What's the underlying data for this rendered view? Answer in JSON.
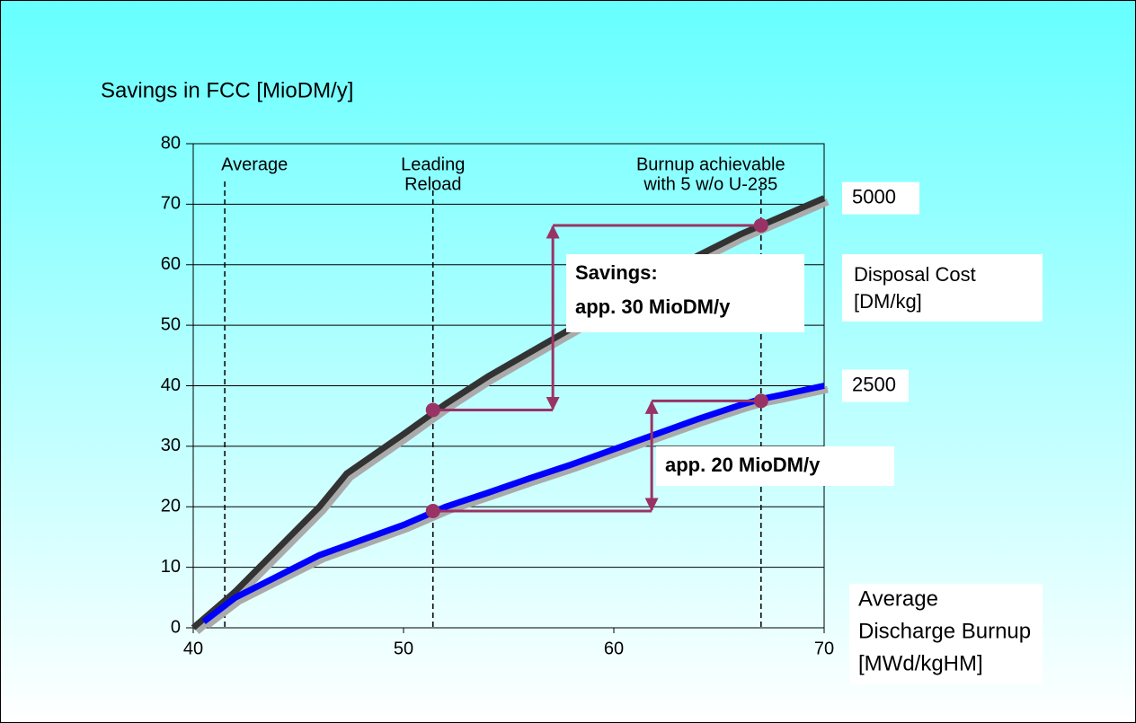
{
  "chart_data": {
    "type": "line",
    "title": "Savings in FCC [MioDM/y]",
    "x_label": [
      "Average",
      "Discharge Burnup",
      "[MWd/kgHM]"
    ],
    "legend_title": [
      "Disposal Cost",
      "[DM/kg]"
    ],
    "xlim": [
      40,
      70
    ],
    "ylim": [
      0,
      80
    ],
    "xticks": [
      40,
      50,
      60,
      70
    ],
    "yticks": [
      0,
      10,
      20,
      30,
      40,
      50,
      60,
      70,
      80
    ],
    "grid": true,
    "series": [
      {
        "name": "5000",
        "color": "#333333",
        "x": [
          40,
          42,
          44,
          46,
          47.3,
          50,
          52,
          54,
          56,
          58,
          60,
          62,
          64,
          66,
          67,
          68,
          70
        ],
        "values": [
          0,
          6,
          13,
          20,
          25.5,
          32,
          37,
          41.5,
          45.5,
          49.5,
          53.5,
          57.5,
          61.5,
          65,
          66.5,
          68,
          71
        ]
      },
      {
        "name": "2500",
        "color": "#0000ff",
        "x": [
          40.5,
          42,
          44,
          46,
          48,
          50,
          52,
          54,
          56,
          58,
          60,
          62,
          64,
          66,
          67,
          68,
          70
        ],
        "values": [
          1,
          5,
          8.5,
          12,
          14.5,
          17,
          20,
          22.3,
          24.7,
          27,
          29.5,
          32,
          34.5,
          36.8,
          37.8,
          38.5,
          40
        ]
      }
    ],
    "reference_lines": [
      {
        "x": 41.5,
        "label": [
          "Average"
        ]
      },
      {
        "x": 51.4,
        "label": [
          "Leading",
          "Reload"
        ]
      },
      {
        "x": 67,
        "label": [
          "Burnup achievable",
          "with 5 w/o U-235"
        ]
      }
    ],
    "annotations": [
      {
        "label": [
          "Savings:",
          "app. 30 MioDM/y"
        ],
        "from": [
          51.4,
          36
        ],
        "arrow_x": 57.1,
        "to": [
          67,
          66.5
        ]
      },
      {
        "label": [
          "app. 20 MioDM/y"
        ],
        "from": [
          51.4,
          19.3
        ],
        "arrow_x": 61.8,
        "to": [
          67,
          37.5
        ]
      }
    ],
    "annotation_color": "#993366"
  }
}
